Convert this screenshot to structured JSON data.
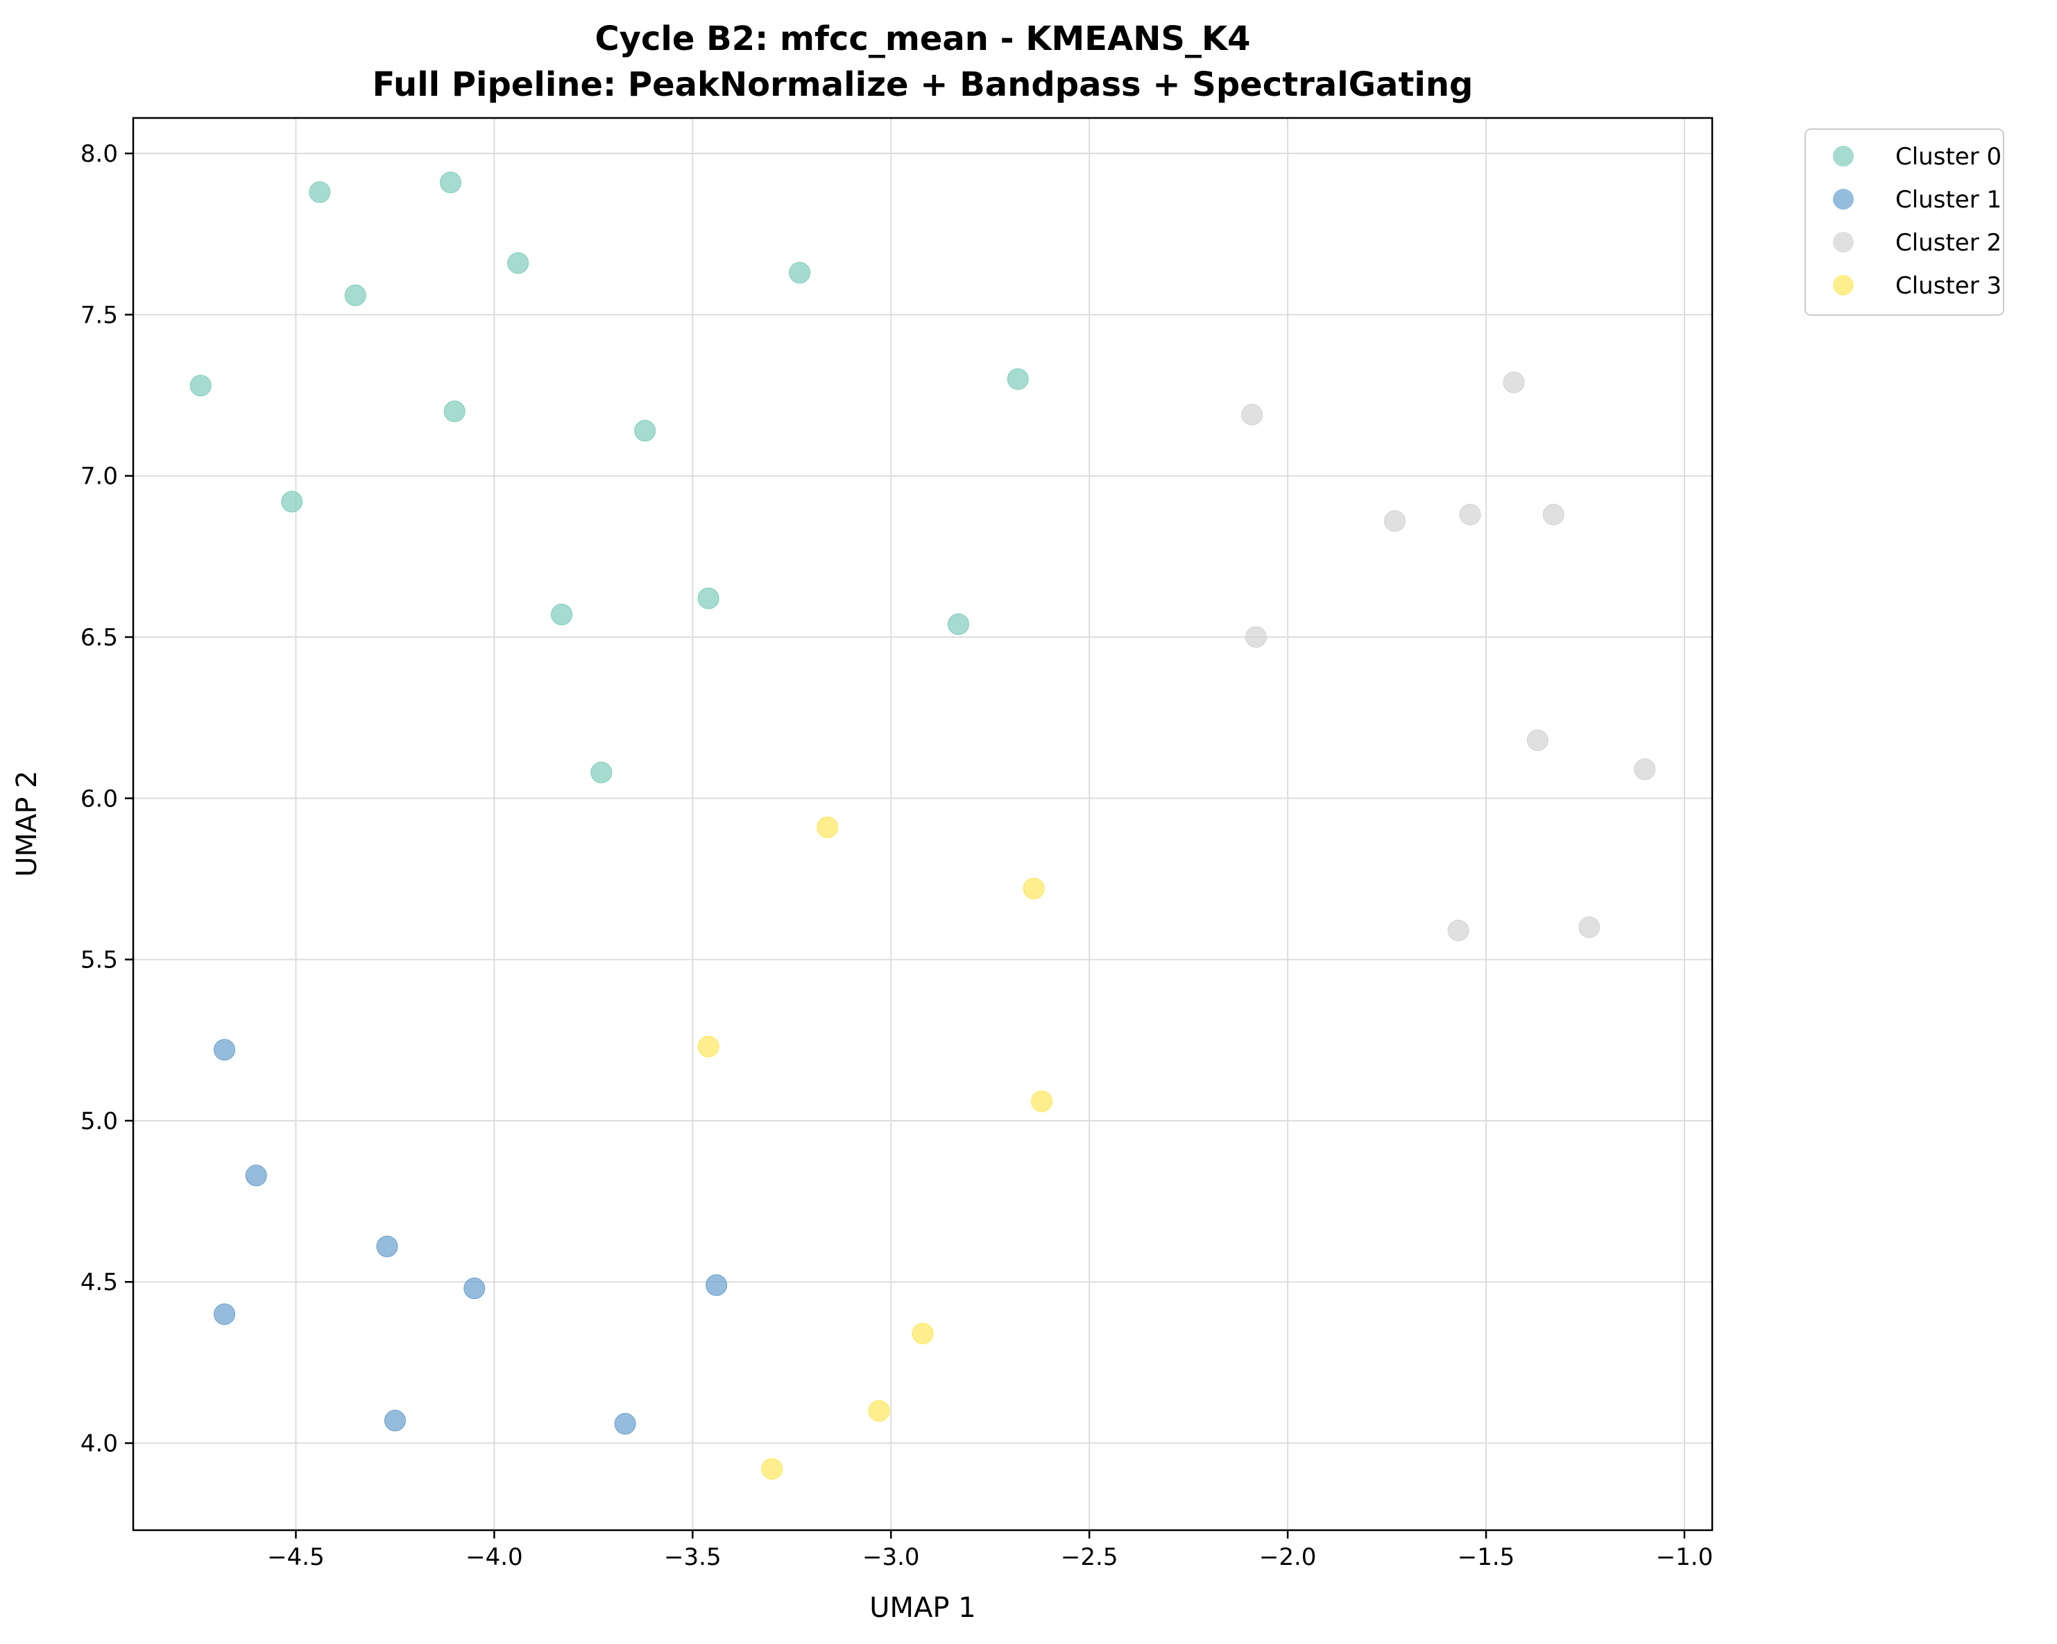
{
  "chart_data": {
    "type": "scatter",
    "title": "Cycle B2: mfcc_mean - KMEANS_K4",
    "subtitle": "Full Pipeline: PeakNormalize + Bandpass + SpectralGating",
    "xlabel": "UMAP 1",
    "ylabel": "UMAP 2",
    "xlim": [
      -4.91,
      -0.93
    ],
    "ylim": [
      3.73,
      8.11
    ],
    "xticks": [
      -4.5,
      -4.0,
      -3.5,
      -3.0,
      -2.5,
      -2.0,
      -1.5,
      -1.0
    ],
    "xtick_labels": [
      "−4.5",
      "−4.0",
      "−3.5",
      "−3.0",
      "−2.5",
      "−2.0",
      "−1.5",
      "−1.0"
    ],
    "yticks": [
      4.0,
      4.5,
      5.0,
      5.5,
      6.0,
      6.5,
      7.0,
      7.5,
      8.0
    ],
    "ytick_labels": [
      "4.0",
      "4.5",
      "5.0",
      "5.5",
      "6.0",
      "6.5",
      "7.0",
      "7.5",
      "8.0"
    ],
    "grid": true,
    "legend_position": "outside-upper-right",
    "series": [
      {
        "name": "Cluster 0",
        "color": "#7fcdbb",
        "points": [
          [
            -4.44,
            7.88
          ],
          [
            -4.11,
            7.91
          ],
          [
            -3.94,
            7.66
          ],
          [
            -4.35,
            7.56
          ],
          [
            -3.23,
            7.63
          ],
          [
            -4.74,
            7.28
          ],
          [
            -4.1,
            7.2
          ],
          [
            -3.62,
            7.14
          ],
          [
            -2.68,
            7.3
          ],
          [
            -4.51,
            6.92
          ],
          [
            -3.83,
            6.57
          ],
          [
            -3.46,
            6.62
          ],
          [
            -2.83,
            6.54
          ],
          [
            -3.73,
            6.08
          ]
        ]
      },
      {
        "name": "Cluster 1",
        "color": "#6a9fcf",
        "points": [
          [
            -4.68,
            5.22
          ],
          [
            -4.6,
            4.83
          ],
          [
            -4.27,
            4.61
          ],
          [
            -4.68,
            4.4
          ],
          [
            -4.05,
            4.48
          ],
          [
            -3.44,
            4.49
          ],
          [
            -4.25,
            4.07
          ],
          [
            -3.67,
            4.06
          ]
        ]
      },
      {
        "name": "Cluster 2",
        "color": "#d3d3d3",
        "points": [
          [
            -2.09,
            7.19
          ],
          [
            -1.43,
            7.29
          ],
          [
            -1.73,
            6.86
          ],
          [
            -1.54,
            6.88
          ],
          [
            -1.33,
            6.88
          ],
          [
            -2.08,
            6.5
          ],
          [
            -1.37,
            6.18
          ],
          [
            -1.1,
            6.09
          ],
          [
            -1.57,
            5.59
          ],
          [
            -1.24,
            5.6
          ]
        ]
      },
      {
        "name": "Cluster 3",
        "color": "#fde75c",
        "points": [
          [
            -3.16,
            5.91
          ],
          [
            -2.64,
            5.72
          ],
          [
            -3.46,
            5.23
          ],
          [
            -2.62,
            5.06
          ],
          [
            -2.92,
            4.34
          ],
          [
            -3.03,
            4.1
          ],
          [
            -3.3,
            3.92
          ]
        ]
      }
    ]
  }
}
